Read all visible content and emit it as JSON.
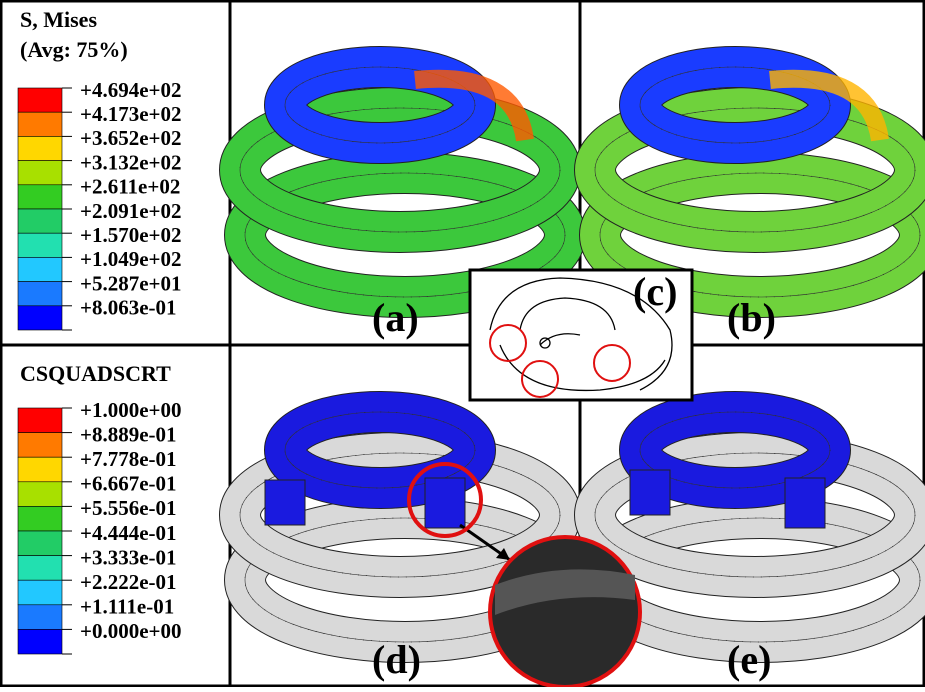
{
  "legends": [
    {
      "title": "S, Mises",
      "subtitle": "(Avg: 75%)",
      "labels": [
        "+4.694e+02",
        "+4.173e+02",
        "+3.652e+02",
        "+3.132e+02",
        "+2.611e+02",
        "+2.091e+02",
        "+1.570e+02",
        "+1.049e+02",
        "+5.287e+01",
        "+8.063e-01"
      ]
    },
    {
      "title": "CSQUADSCRT",
      "labels": [
        "+1.000e+00",
        "+8.889e-01",
        "+7.778e-01",
        "+6.667e-01",
        "+5.556e-01",
        "+4.444e-01",
        "+3.333e-01",
        "+2.222e-01",
        "+1.111e-01",
        "+0.000e+00"
      ]
    }
  ],
  "panels": [
    "(a)",
    "(b)",
    "(c)",
    "(d)",
    "(e)"
  ]
}
